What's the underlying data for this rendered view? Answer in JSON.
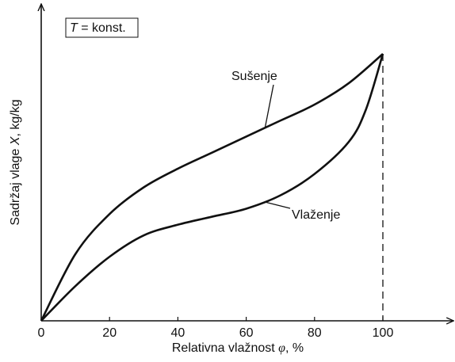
{
  "chart_data": {
    "type": "line",
    "annotation": [
      "T",
      " = konst."
    ],
    "xlabel": [
      "Relativna vlažnost ",
      "φ",
      ", %"
    ],
    "ylabel": [
      "Sadržaj vlage ",
      "X",
      ", kg/kg"
    ],
    "xlim": [
      0,
      120
    ],
    "ylim": [
      0,
      1
    ],
    "xticks": [
      0,
      20,
      40,
      60,
      80,
      100
    ],
    "series": [
      {
        "name": "Sušenje",
        "color": "#111111",
        "x": [
          0,
          10,
          20,
          30,
          40,
          50,
          60,
          70,
          80,
          90,
          100
        ],
        "values": [
          0,
          0.25,
          0.4,
          0.5,
          0.57,
          0.63,
          0.69,
          0.75,
          0.81,
          0.89,
          1.0
        ]
      },
      {
        "name": "Vlaženje",
        "color": "#111111",
        "x": [
          0,
          10,
          20,
          30,
          40,
          50,
          60,
          70,
          80,
          90,
          95,
          100
        ],
        "values": [
          0,
          0.13,
          0.24,
          0.32,
          0.36,
          0.39,
          0.42,
          0.47,
          0.55,
          0.67,
          0.79,
          1.0
        ]
      }
    ]
  }
}
